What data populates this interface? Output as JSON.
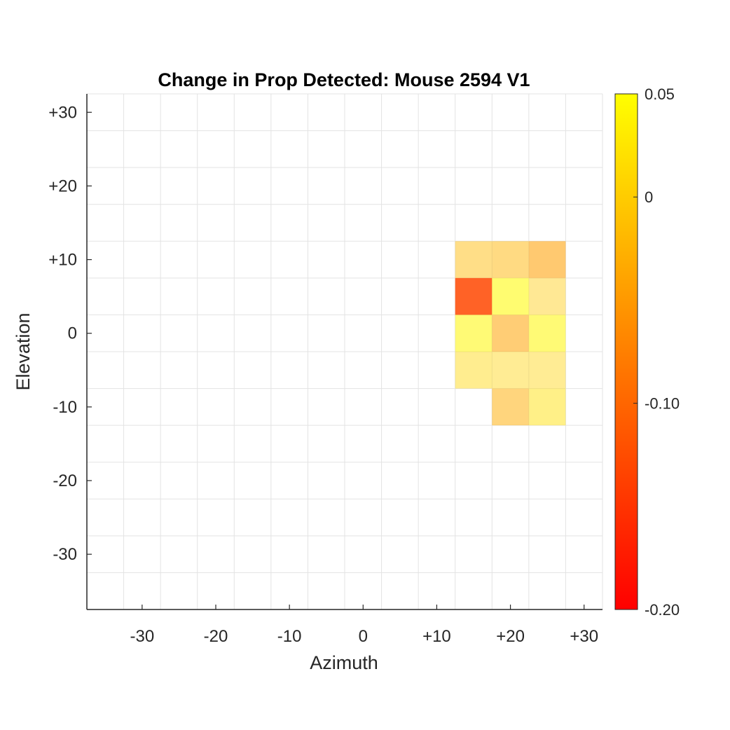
{
  "chart_data": {
    "type": "heatmap",
    "title": "Change in Prop Detected: Mouse 2594 V1",
    "xlabel": "Azimuth",
    "ylabel": "Elevation",
    "xlim": [
      -37.5,
      32.5
    ],
    "ylim": [
      -37.5,
      32.5
    ],
    "x_ticks": [
      -30,
      -20,
      -10,
      0,
      10,
      20,
      30
    ],
    "x_tick_labels": [
      "-30",
      "-20",
      "-10",
      "0",
      "+10",
      "+20",
      "+30"
    ],
    "y_ticks": [
      30,
      20,
      10,
      0,
      -10,
      -20,
      -30
    ],
    "y_tick_labels": [
      "+30",
      "+20",
      "+10",
      "0",
      "-10",
      "-20",
      "-30"
    ],
    "grid": true,
    "grid_step": 5,
    "colormap": "autumn",
    "color_limits": [
      -0.2,
      0.05
    ],
    "colorbar_ticks": [
      0.05,
      0,
      -0.1,
      -0.2
    ],
    "colorbar_tick_labels": [
      "0.05",
      "0",
      "-0.10",
      "-0.20"
    ],
    "cell_size": 5,
    "cells": [
      {
        "az": 15,
        "el": 10,
        "value": -0.02
      },
      {
        "az": 20,
        "el": 10,
        "value": -0.025
      },
      {
        "az": 25,
        "el": 10,
        "value": -0.045
      },
      {
        "az": 15,
        "el": 5,
        "value": -0.13
      },
      {
        "az": 20,
        "el": 5,
        "value": 0.045
      },
      {
        "az": 25,
        "el": 5,
        "value": -0.005
      },
      {
        "az": 15,
        "el": 0,
        "value": 0.04
      },
      {
        "az": 20,
        "el": 0,
        "value": -0.04
      },
      {
        "az": 25,
        "el": 0,
        "value": 0.04
      },
      {
        "az": 15,
        "el": -5,
        "value": 0.01
      },
      {
        "az": 20,
        "el": -5,
        "value": 0.005
      },
      {
        "az": 25,
        "el": -5,
        "value": 0.005
      },
      {
        "az": 20,
        "el": -10,
        "value": -0.03
      },
      {
        "az": 25,
        "el": -10,
        "value": 0.02
      }
    ]
  }
}
